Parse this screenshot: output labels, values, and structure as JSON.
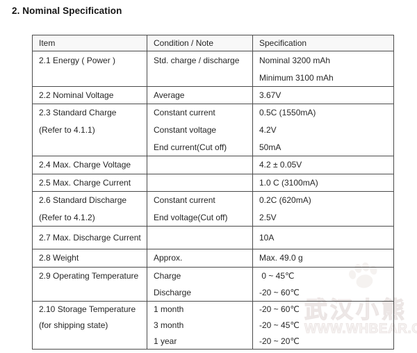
{
  "title": "2. Nominal Specification",
  "table": {
    "columns": [
      "Item",
      "Condition / Note",
      "Specification"
    ],
    "rows": [
      {
        "item": [
          "2.1 Energy ( Power )"
        ],
        "condition": [
          "Std. charge / discharge"
        ],
        "spec": [
          "Nominal 3200 mAh",
          "Minimum 3100 mAh"
        ]
      },
      {
        "item": [
          "2.2 Nominal Voltage"
        ],
        "condition": [
          "Average"
        ],
        "spec": [
          "3.67V"
        ]
      },
      {
        "item": [
          "2.3 Standard Charge",
          "(Refer to 4.1.1)"
        ],
        "condition": [
          "Constant current",
          "Constant voltage",
          "End current(Cut off)"
        ],
        "spec": [
          "0.5C (1550mA)",
          "4.2V",
          "50mA"
        ]
      },
      {
        "item": [
          "2.4 Max. Charge Voltage"
        ],
        "condition": [],
        "spec": [
          "4.2 ± 0.05V"
        ]
      },
      {
        "item": [
          "2.5 Max. Charge Current"
        ],
        "condition": [],
        "spec": [
          "1.0 C (3100mA)"
        ]
      },
      {
        "item": [
          "2.6 Standard Discharge",
          "(Refer to 4.1.2)"
        ],
        "condition": [
          "Constant current",
          "End voltage(Cut off)"
        ],
        "spec": [
          "0.2C (620mA)",
          "2.5V"
        ]
      },
      {
        "item": [
          "2.7 Max. Discharge Current"
        ],
        "condition": [],
        "spec": [
          "10A"
        ]
      },
      {
        "item": [
          "2.8 Weight"
        ],
        "condition": [
          "Approx."
        ],
        "spec": [
          "Max. 49.0 g"
        ]
      },
      {
        "item": [
          "2.9 Operating Temperature"
        ],
        "condition": [
          "Charge",
          "Discharge"
        ],
        "spec": [
          " 0 ~ 45℃",
          "-20 ~ 60℃"
        ]
      },
      {
        "item": [
          "2.10 Storage Temperature",
          "(for shipping state)"
        ],
        "condition": [
          "1 month",
          "3 month",
          "1 year"
        ],
        "spec": [
          "-20 ~ 60℃",
          "-20 ~ 45℃",
          "-20 ~ 20℃"
        ]
      }
    ]
  },
  "watermark": {
    "text_cn": "武汉小熊",
    "text_url": "WWW.WHBEAR.COM",
    "icon": "paw-print-icon",
    "color": "#ece6e5"
  },
  "colors": {
    "page_bg": "#ffffff",
    "border": "#4b4b4b",
    "text": "#262626",
    "header_bg": "#f8f8f8"
  }
}
